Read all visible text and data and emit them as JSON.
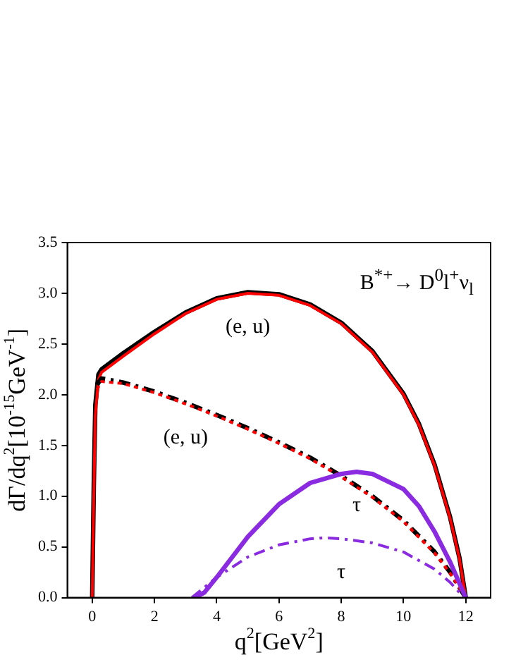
{
  "chart_data": {
    "type": "line",
    "title": "B$^{*+}$→ D$^{0}$l$^{+}$ν$_{l}$",
    "xlabel": "q$^{2}$[GeV$^{2}$]",
    "ylabel": "dΓ/dq$^{2}$[10$^{-15}$GeV$^{-1}$]",
    "xlim": [
      -0.8,
      12.8
    ],
    "ylim": [
      0,
      3.5
    ],
    "xticks": [
      0,
      2,
      4,
      6,
      8,
      10,
      12
    ],
    "yticks": [
      {
        "value": 0,
        "label": "0.0"
      },
      {
        "value": 0.5,
        "label": "0.5"
      },
      {
        "value": 1,
        "label": "1.0"
      },
      {
        "value": 1.5,
        "label": "1.5"
      },
      {
        "value": 2,
        "label": "2.0"
      },
      {
        "value": 2.5,
        "label": "2.5"
      },
      {
        "value": 3,
        "label": "3.0"
      },
      {
        "value": 3.5,
        "label": "3.5"
      }
    ],
    "grid": false,
    "legend": false,
    "marker": "none",
    "series": [
      {
        "color": "#000000",
        "line_style": "solid",
        "x": [
          0,
          0.05,
          0.1,
          0.2,
          0.3,
          1,
          2,
          3,
          4,
          5,
          6,
          7,
          8,
          9,
          10,
          10.5,
          11,
          11.5,
          11.8,
          12
        ],
        "values": [
          0,
          1.1,
          1.9,
          2.2,
          2.25,
          2.41,
          2.62,
          2.81,
          2.95,
          3.01,
          2.99,
          2.89,
          2.71,
          2.43,
          2.01,
          1.71,
          1.31,
          0.79,
          0.39,
          0
        ]
      },
      {
        "color": "#ff0000",
        "line_style": "solid",
        "x": [
          0,
          0.05,
          0.1,
          0.2,
          0.3,
          1,
          2,
          3,
          4,
          5,
          6,
          7,
          8,
          9,
          10,
          10.5,
          11,
          11.5,
          11.8,
          12
        ],
        "values": [
          0,
          1.0,
          1.8,
          2.15,
          2.22,
          2.38,
          2.6,
          2.8,
          2.94,
          3.0,
          2.98,
          2.88,
          2.7,
          2.42,
          2.0,
          1.7,
          1.3,
          0.78,
          0.38,
          0
        ]
      },
      {
        "color": "#000000",
        "line_style": "dashed",
        "x": [
          0.15,
          0.3,
          1,
          2,
          3,
          4,
          5,
          6,
          7,
          8,
          9,
          10,
          11,
          11.5,
          12
        ],
        "values": [
          2.1,
          2.16,
          2.12,
          2.03,
          1.92,
          1.8,
          1.67,
          1.53,
          1.38,
          1.2,
          1.0,
          0.76,
          0.45,
          0.25,
          0
        ]
      },
      {
        "color": "#ff0000",
        "line_style": "dotted",
        "x": [
          0.15,
          0.3,
          1,
          2,
          3,
          4,
          5,
          6,
          7,
          8,
          9,
          10,
          11,
          11.5,
          12
        ],
        "values": [
          2.05,
          2.13,
          2.11,
          2.02,
          1.91,
          1.79,
          1.66,
          1.52,
          1.37,
          1.19,
          0.99,
          0.75,
          0.44,
          0.24,
          0
        ]
      },
      {
        "color": "#8a2be2",
        "line_style": "solid",
        "x": [
          3.3,
          3.6,
          4,
          5,
          6,
          7,
          8,
          8.5,
          9,
          10,
          10.5,
          11,
          11.5,
          12
        ],
        "values": [
          0,
          0.05,
          0.2,
          0.6,
          0.92,
          1.13,
          1.22,
          1.24,
          1.22,
          1.07,
          0.9,
          0.65,
          0.35,
          0
        ]
      },
      {
        "color": "#8a2be2",
        "line_style": "dashed",
        "x": [
          3.2,
          4,
          5,
          6,
          7,
          7.5,
          8,
          9,
          10,
          11,
          11.5,
          11.8
        ],
        "values": [
          0,
          0.2,
          0.4,
          0.52,
          0.58,
          0.59,
          0.58,
          0.54,
          0.45,
          0.28,
          0.15,
          0.05
        ]
      }
    ],
    "annotations": [
      {
        "text": "(e, u)",
        "x": 5,
        "y": 3.0
      },
      {
        "text": "(e, u)",
        "x": 3,
        "y": 1.91
      },
      {
        "text": "τ",
        "x": 8.5,
        "y": 1.24
      },
      {
        "text": "τ",
        "x": 8,
        "y": 0.58
      }
    ]
  }
}
